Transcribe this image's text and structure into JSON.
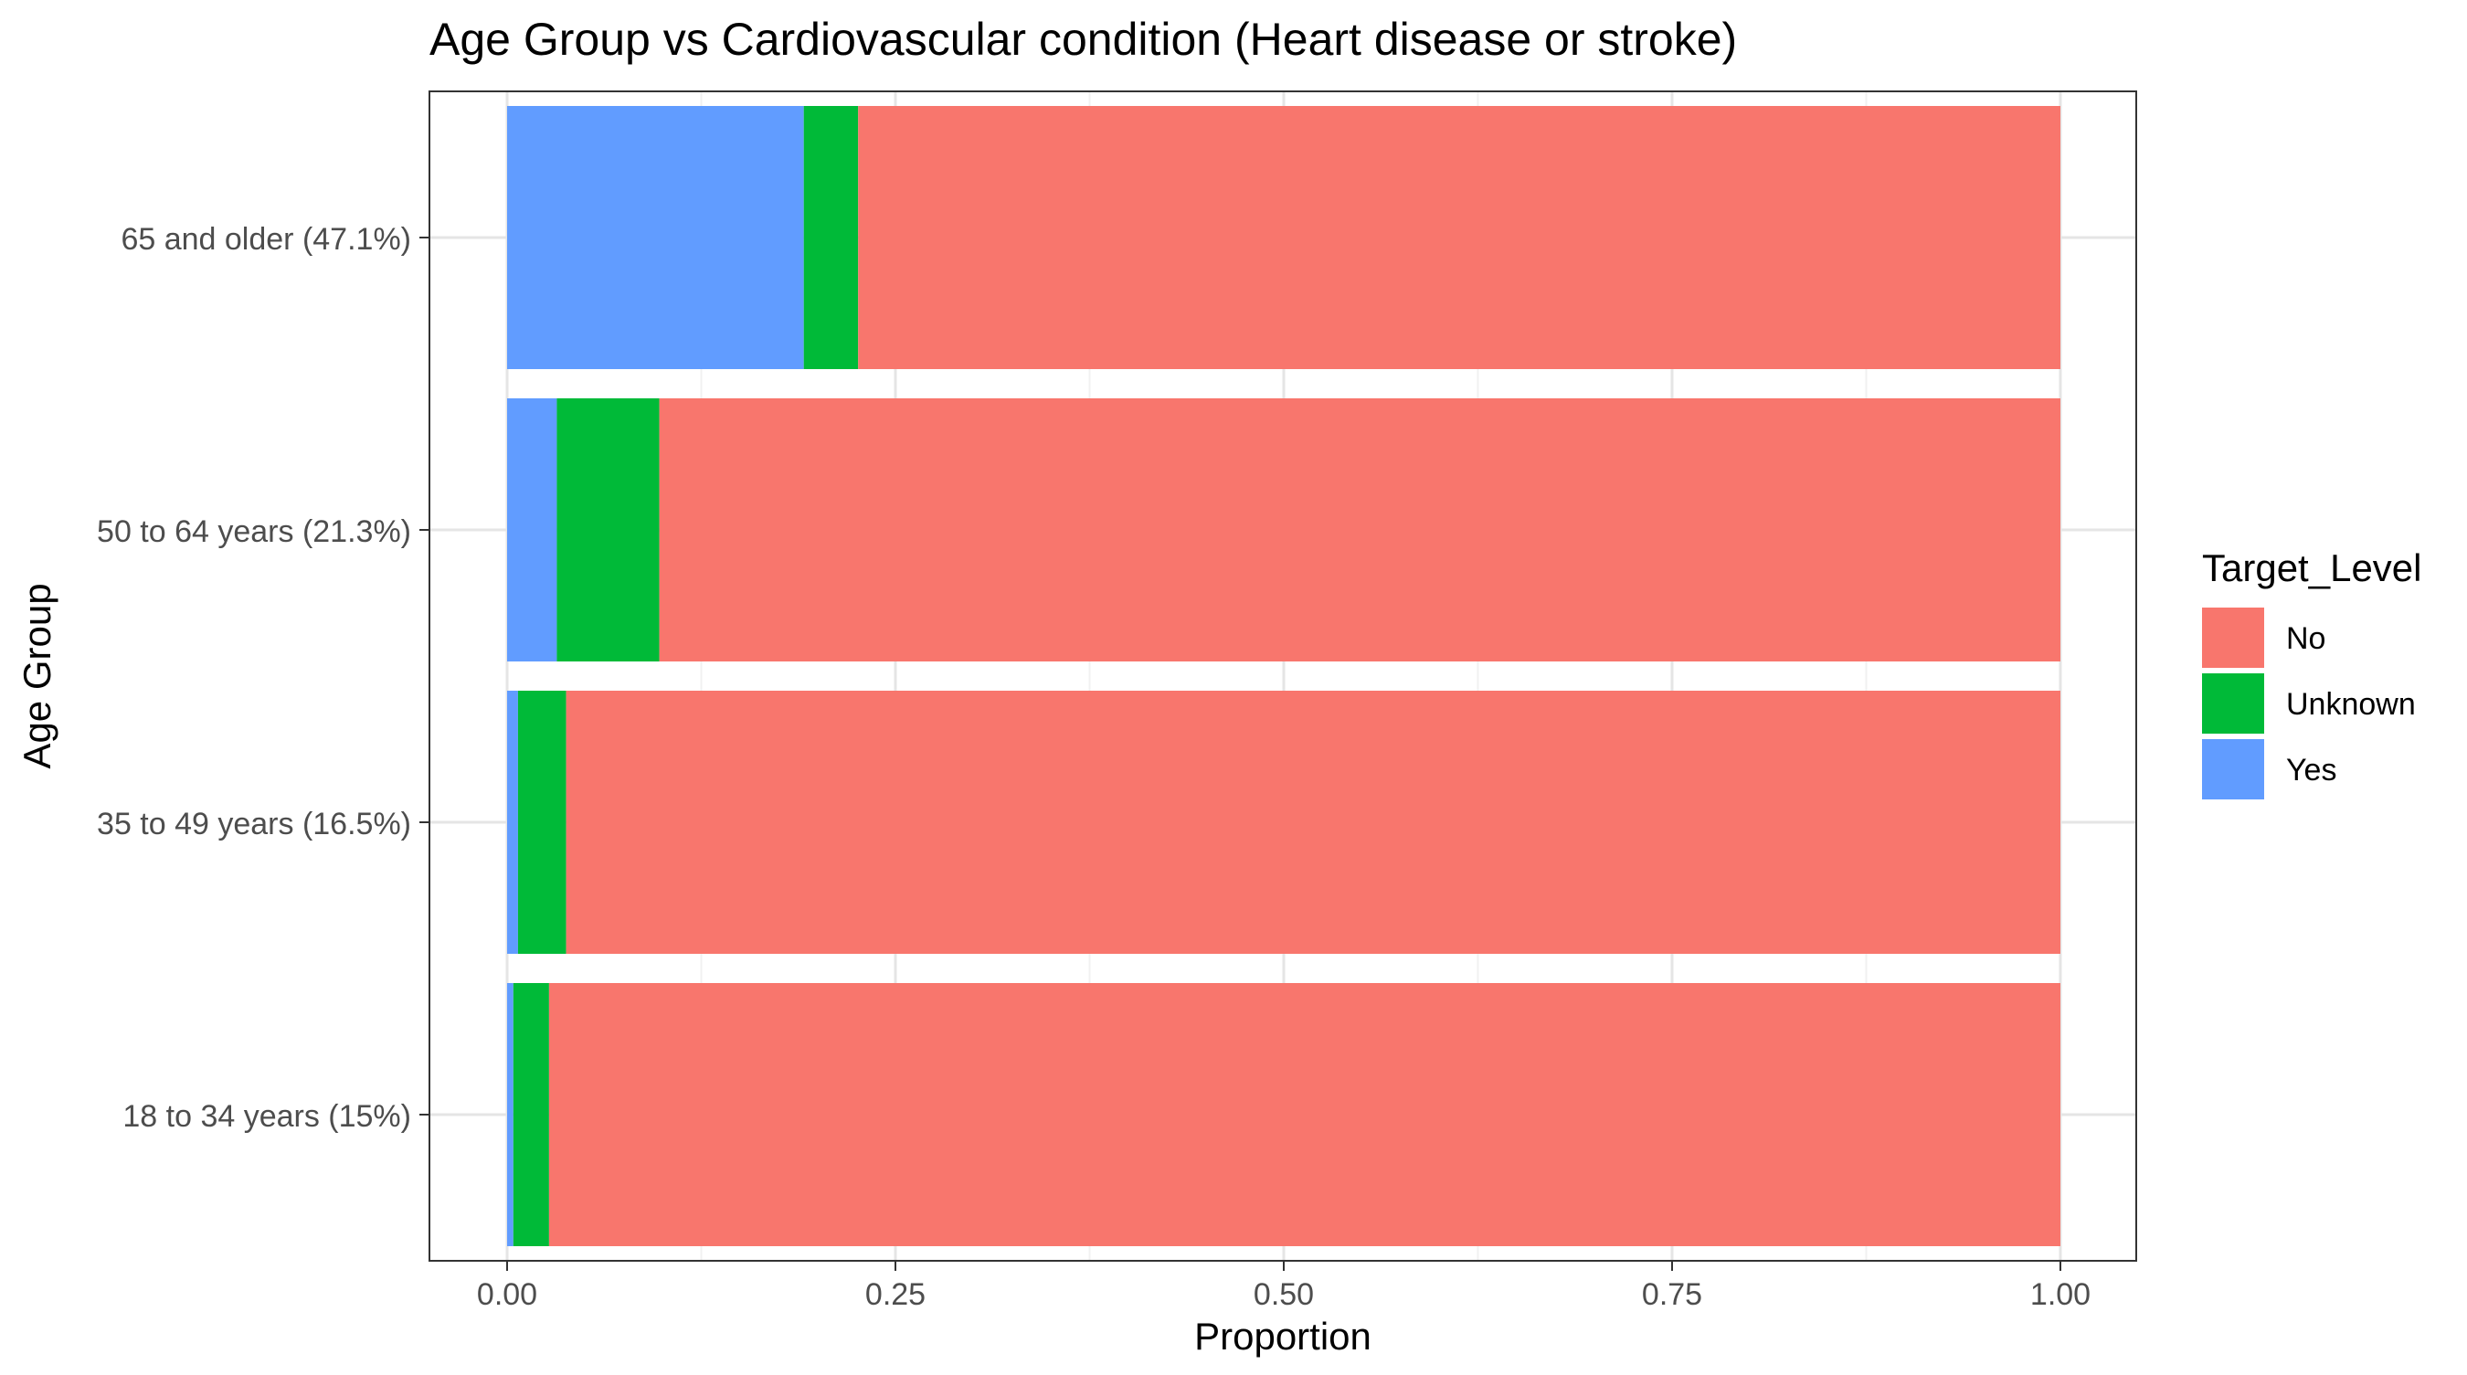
{
  "chart_data": {
    "type": "bar",
    "orientation": "horizontal",
    "stacked": true,
    "title": "Age Group vs Cardiovascular condition (Heart disease or stroke)",
    "xlabel": "Proportion",
    "ylabel": "Age Group",
    "xlim": [
      0,
      1
    ],
    "xticks": [
      0,
      0.25,
      0.5,
      0.75,
      1
    ],
    "xtick_labels": [
      "0.00",
      "0.25",
      "0.50",
      "0.75",
      "1.00"
    ],
    "grid": true,
    "legend": {
      "title": "Target_Level",
      "position": "right"
    },
    "categories": [
      "65 and older (47.1%)",
      "50 to 64 years (21.3%)",
      "35 to 49 years (16.5%)",
      "18 to 34 years (15%)"
    ],
    "series": [
      {
        "name": "Yes",
        "color": "#619CFF",
        "values": [
          0.191,
          0.032,
          0.007,
          0.004
        ]
      },
      {
        "name": "Unknown",
        "color": "#00BA38",
        "values": [
          0.035,
          0.066,
          0.031,
          0.023
        ]
      },
      {
        "name": "No",
        "color": "#F8766D",
        "values": [
          0.774,
          0.902,
          0.962,
          0.973
        ]
      }
    ],
    "legend_order": [
      "No",
      "Unknown",
      "Yes"
    ]
  }
}
